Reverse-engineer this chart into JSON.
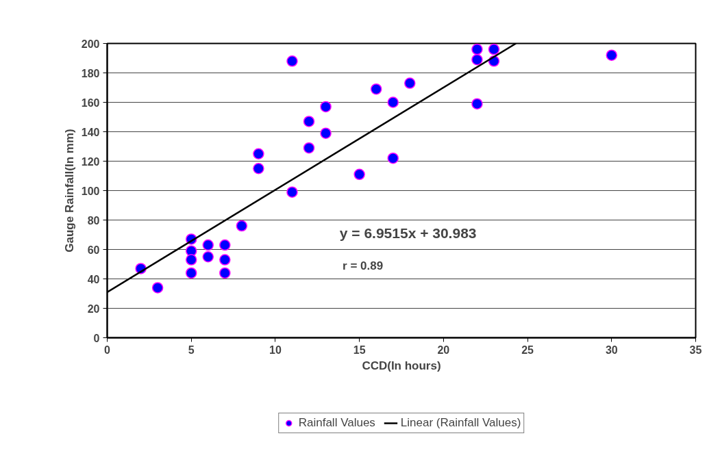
{
  "chart_data": {
    "type": "scatter",
    "xlabel": "CCD(In hours)",
    "ylabel": "Gauge Rainfall(In mm)",
    "xlim": [
      0,
      35
    ],
    "xticks": [
      0,
      5,
      10,
      15,
      20,
      25,
      30,
      35
    ],
    "ylim": [
      0,
      200
    ],
    "yticks": [
      0,
      20,
      40,
      60,
      80,
      100,
      120,
      140,
      160,
      180,
      200
    ],
    "grid": "y",
    "legend": "bottom",
    "series": [
      {
        "name": "Rainfall Values",
        "marker": "circle",
        "color": "#0000ff",
        "x": [
          2,
          3,
          5,
          5,
          5,
          5,
          6,
          6,
          7,
          7,
          7,
          8,
          9,
          9,
          11,
          11,
          12,
          12,
          13,
          13,
          15,
          16,
          17,
          17,
          18,
          22,
          22,
          22,
          23,
          23,
          30
        ],
        "values": [
          47,
          34,
          67,
          59,
          53,
          44,
          63,
          55,
          63,
          53,
          44,
          76,
          125,
          115,
          188,
          99,
          147,
          129,
          157,
          139,
          111,
          169,
          160,
          122,
          173,
          196,
          189,
          159,
          196,
          188,
          192
        ]
      },
      {
        "name": "Linear (Rainfall Values)",
        "type": "line",
        "color": "#000000",
        "line_style": "solid",
        "x": [
          0,
          24.31
        ],
        "values": [
          31,
          200
        ]
      }
    ],
    "annotations": [
      "y = 6.9515x + 30.983",
      "r  =  0.89"
    ]
  }
}
